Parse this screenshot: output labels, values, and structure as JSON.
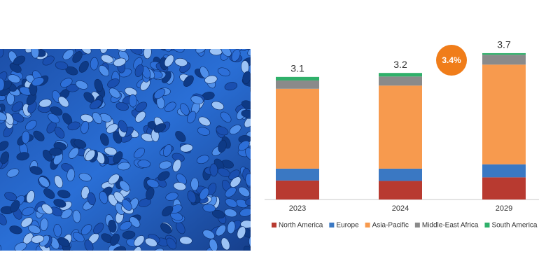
{
  "chart_data": {
    "type": "stacked-bar",
    "categories": [
      "2023",
      "2024",
      "2029"
    ],
    "series": [
      {
        "name": "North America",
        "color": "#b83a30",
        "values": [
          0.48,
          0.47,
          0.56
        ]
      },
      {
        "name": "Europe",
        "color": "#3a78c3",
        "values": [
          0.3,
          0.31,
          0.33
        ]
      },
      {
        "name": "Asia-Pacific",
        "color": "#f79a4e",
        "values": [
          2.02,
          2.1,
          2.52
        ]
      },
      {
        "name": "Middle-East Africa",
        "color": "#8a8a8a",
        "values": [
          0.21,
          0.23,
          0.25
        ]
      },
      {
        "name": "South America",
        "color": "#2fb06a",
        "values": [
          0.09,
          0.09,
          0.04
        ]
      }
    ],
    "totals": [
      3.1,
      3.2,
      3.7
    ],
    "annotation": "3.4%"
  }
}
